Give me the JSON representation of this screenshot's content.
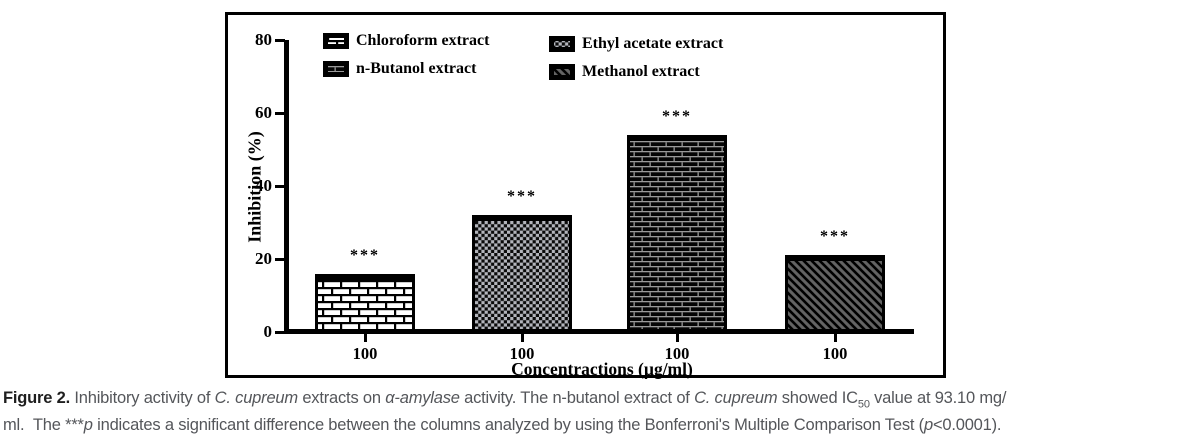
{
  "chart_data": {
    "type": "bar",
    "title": "",
    "ylabel": "Inhibition (%)",
    "xlabel": "Concentractions (µg/ml)",
    "ylim": [
      0,
      80
    ],
    "yticks": [
      0,
      20,
      40,
      60,
      80
    ],
    "categories": [
      "100",
      "100",
      "100",
      "100"
    ],
    "bars": [
      {
        "id": "chloroform",
        "label": "Chloroform extract",
        "value": 16,
        "pattern": "pat-brick-light",
        "significance": "***"
      },
      {
        "id": "ethyl-acetate",
        "label": "Ethyl acetate extract",
        "value": 32,
        "pattern": "pat-checker",
        "significance": "***"
      },
      {
        "id": "n-butanol",
        "label": "n-Butanol extract",
        "value": 54,
        "pattern": "pat-brick-dark",
        "significance": "***"
      },
      {
        "id": "methanol",
        "label": "Methanol extract",
        "value": 21,
        "pattern": "pat-diag",
        "significance": "***"
      }
    ],
    "legend_columns": [
      [
        {
          "label": "Chloroform extract",
          "pattern": "pat-brick-light"
        },
        {
          "label": "n-Butanol extract",
          "pattern": "pat-brick-dark"
        }
      ],
      [
        {
          "label": "Ethyl acetate extract",
          "pattern": "pat-checker"
        },
        {
          "label": "Methanol extract",
          "pattern": "pat-diag"
        }
      ]
    ],
    "legend_position": "top-inside",
    "grid": false,
    "colors": {
      "axis": "#000000",
      "bar_outline": "#000000",
      "checker_light": "#b3b5bc",
      "diagonal_background": "#636363",
      "dark_brick_line": "#9a9a9a"
    }
  },
  "caption": {
    "lines": [
      [
        {
          "t": "Figure 2. ",
          "style": "b"
        },
        {
          "t": "Inhibitory activity of "
        },
        {
          "t": "C. cupreum",
          "style": "i"
        },
        {
          "t": " extracts on "
        },
        {
          "t": "α-amylase",
          "style": "i"
        },
        {
          "t": " activity. The n-butanol extract of "
        },
        {
          "t": "C. cupreum",
          "style": "i"
        },
        {
          "t": " showed IC"
        },
        {
          "t": "50",
          "style": "sub"
        },
        {
          "t": " value at 93.10 mg/"
        }
      ],
      [
        {
          "t": "ml.  The "
        },
        {
          "t": "***"
        },
        {
          "t": "p",
          "style": "i"
        },
        {
          "t": " indicates a significant difference between the columns analyzed by using the Bonferroni's Multiple Comparison Test ("
        },
        {
          "t": "p",
          "style": "i"
        },
        {
          "t": "<0.0001)."
        }
      ]
    ]
  }
}
